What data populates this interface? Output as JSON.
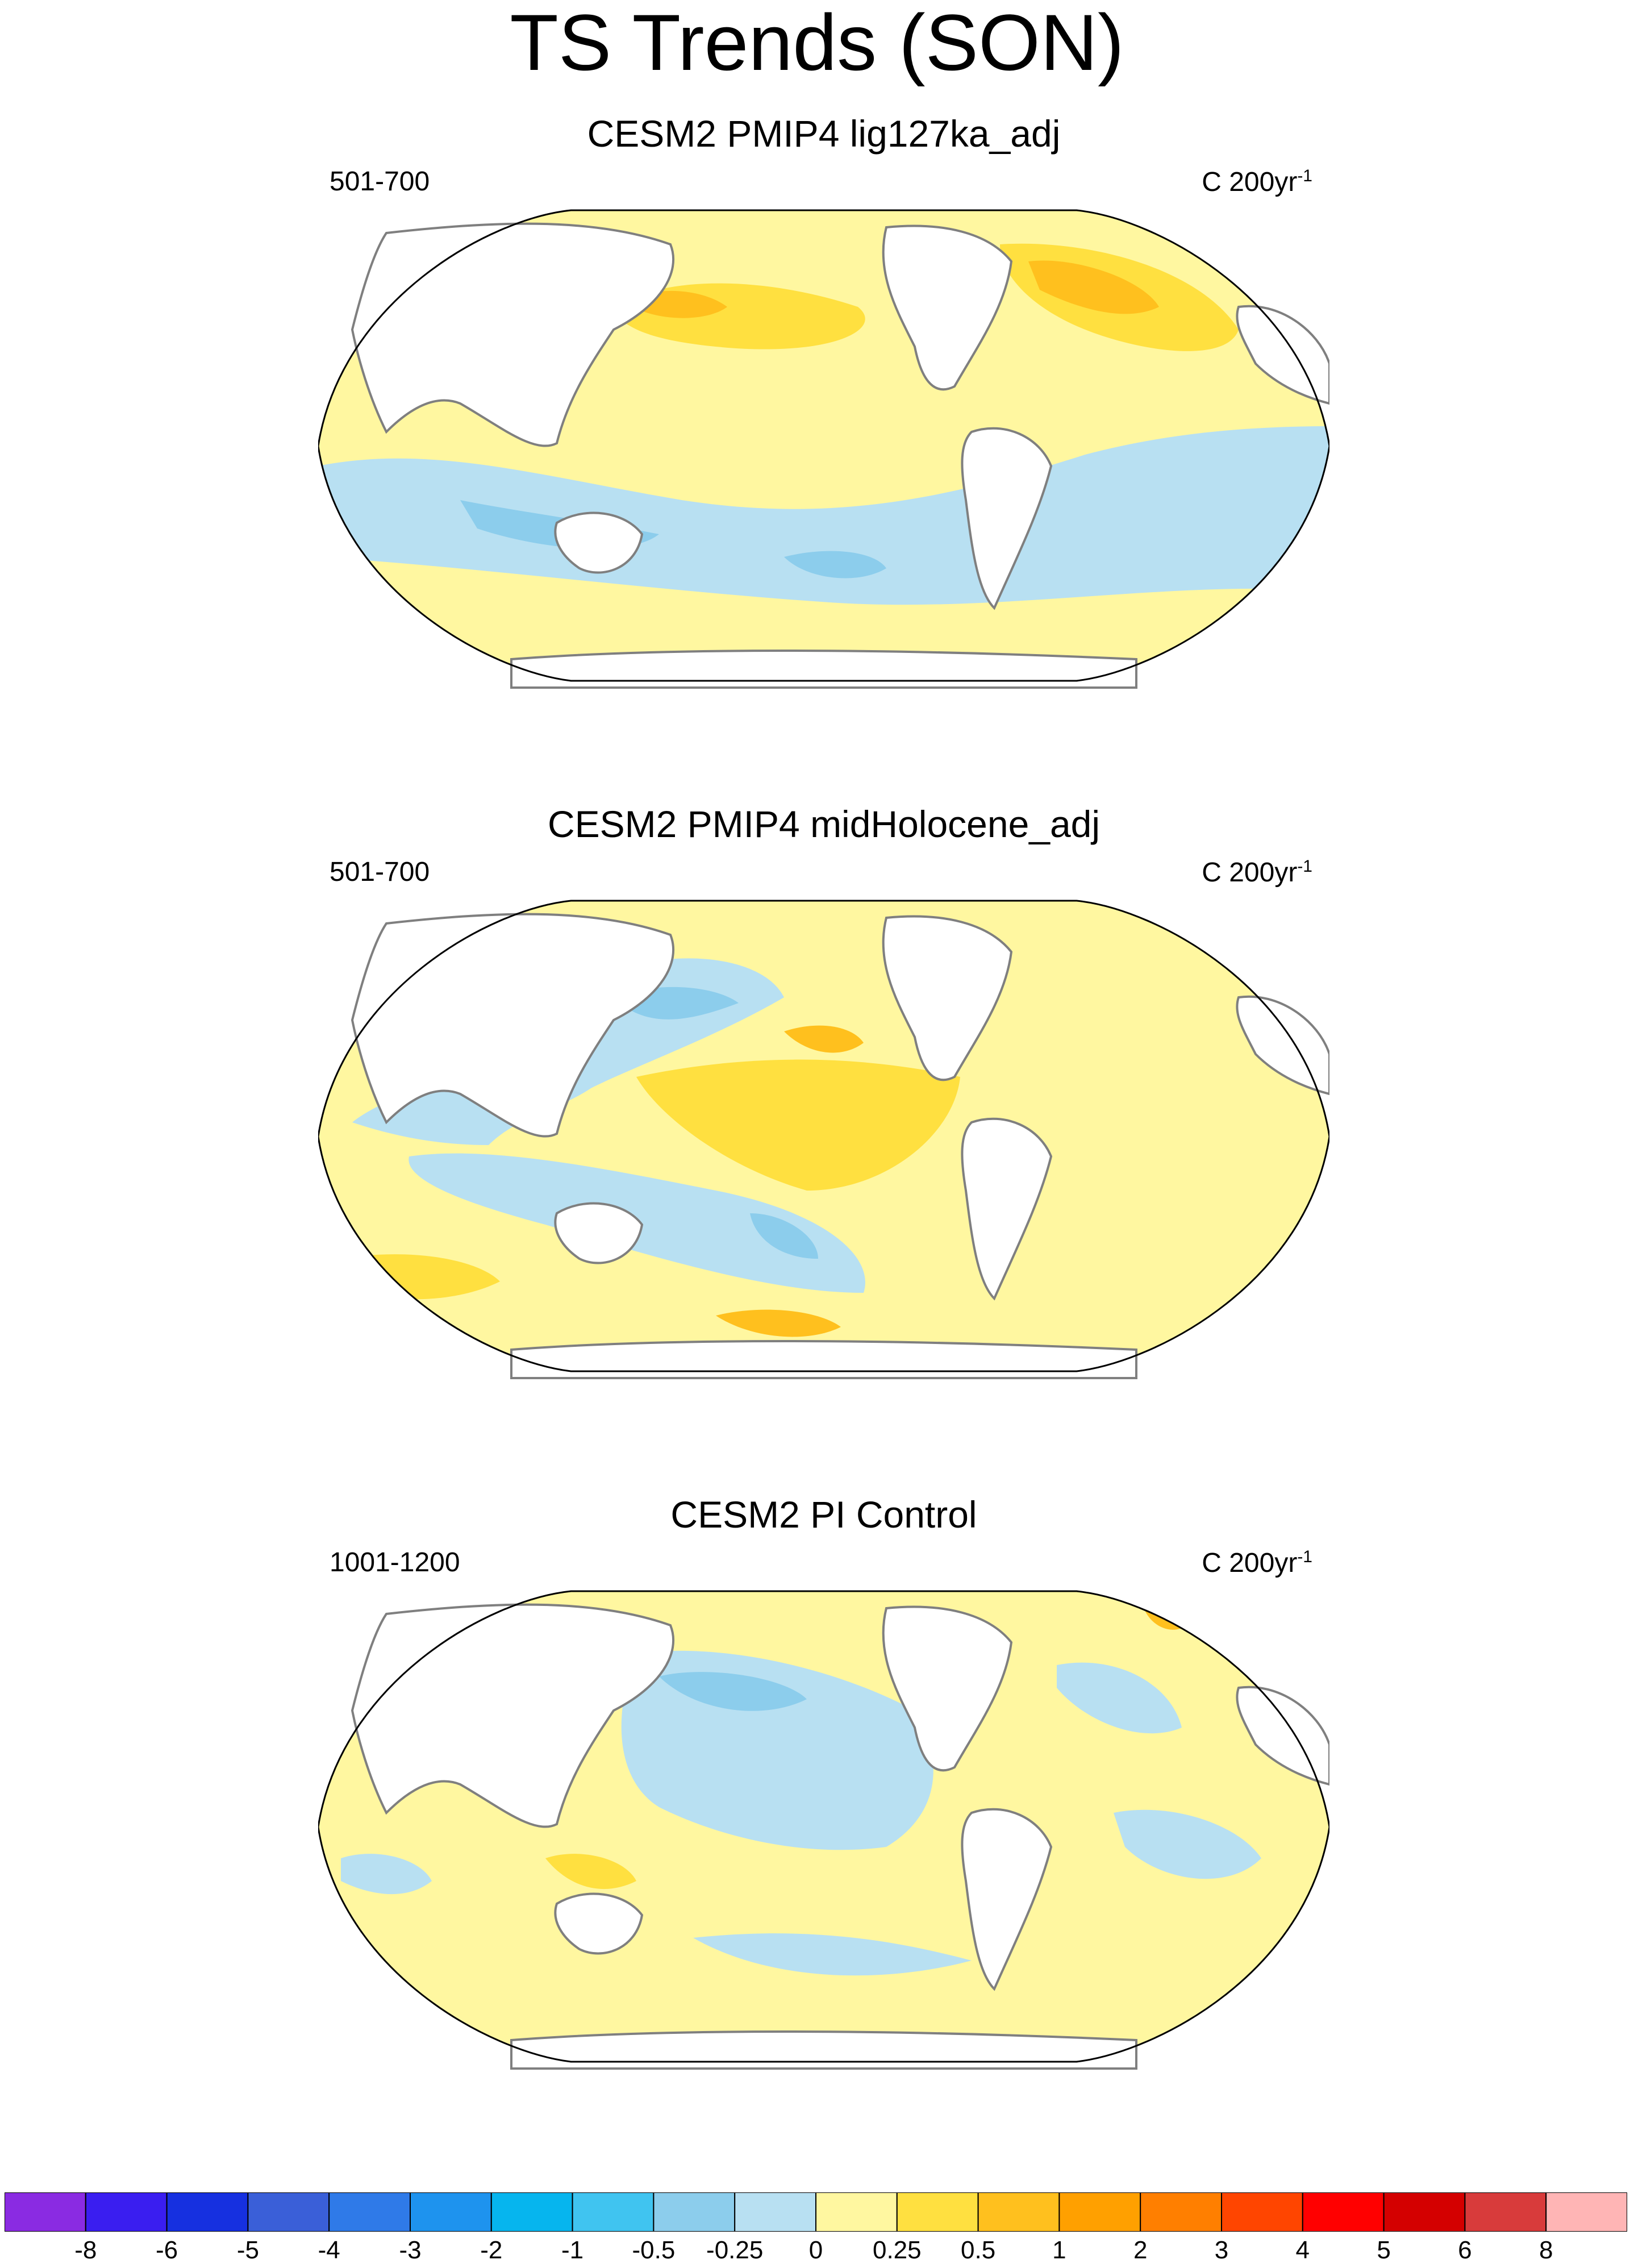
{
  "title": "TS Trends (SON)",
  "panels": [
    {
      "title": "CESM2 PMIP4 lig127ka_adj",
      "period": "501-700",
      "units": "C 200yr",
      "units_exp": "-1"
    },
    {
      "title": "CESM2 PMIP4 midHolocene_adj",
      "period": "501-700",
      "units": "C 200yr",
      "units_exp": "-1"
    },
    {
      "title": "CESM2 PI Control",
      "period": "1001-1200",
      "units": "C 200yr",
      "units_exp": "-1"
    }
  ],
  "colorbar": {
    "colors": [
      "#8a2be2",
      "#3a1ef0",
      "#1630e0",
      "#3a5fd8",
      "#2f7ae8",
      "#1e93ee",
      "#06b5ee",
      "#40c4f0",
      "#8ccdec",
      "#b8e0f2",
      "#fff7a0",
      "#ffe040",
      "#ffc01e",
      "#ffa000",
      "#ff7f00",
      "#ff4500",
      "#ff0000",
      "#d40000",
      "#d83b3b",
      "#ffb5b5"
    ],
    "labels": [
      "-8",
      "-6",
      "-5",
      "-4",
      "-3",
      "-2",
      "-1",
      "-0.5",
      "-0.25",
      "0",
      "0.25",
      "0.5",
      "1",
      "2",
      "3",
      "4",
      "5",
      "6",
      "8"
    ]
  }
}
